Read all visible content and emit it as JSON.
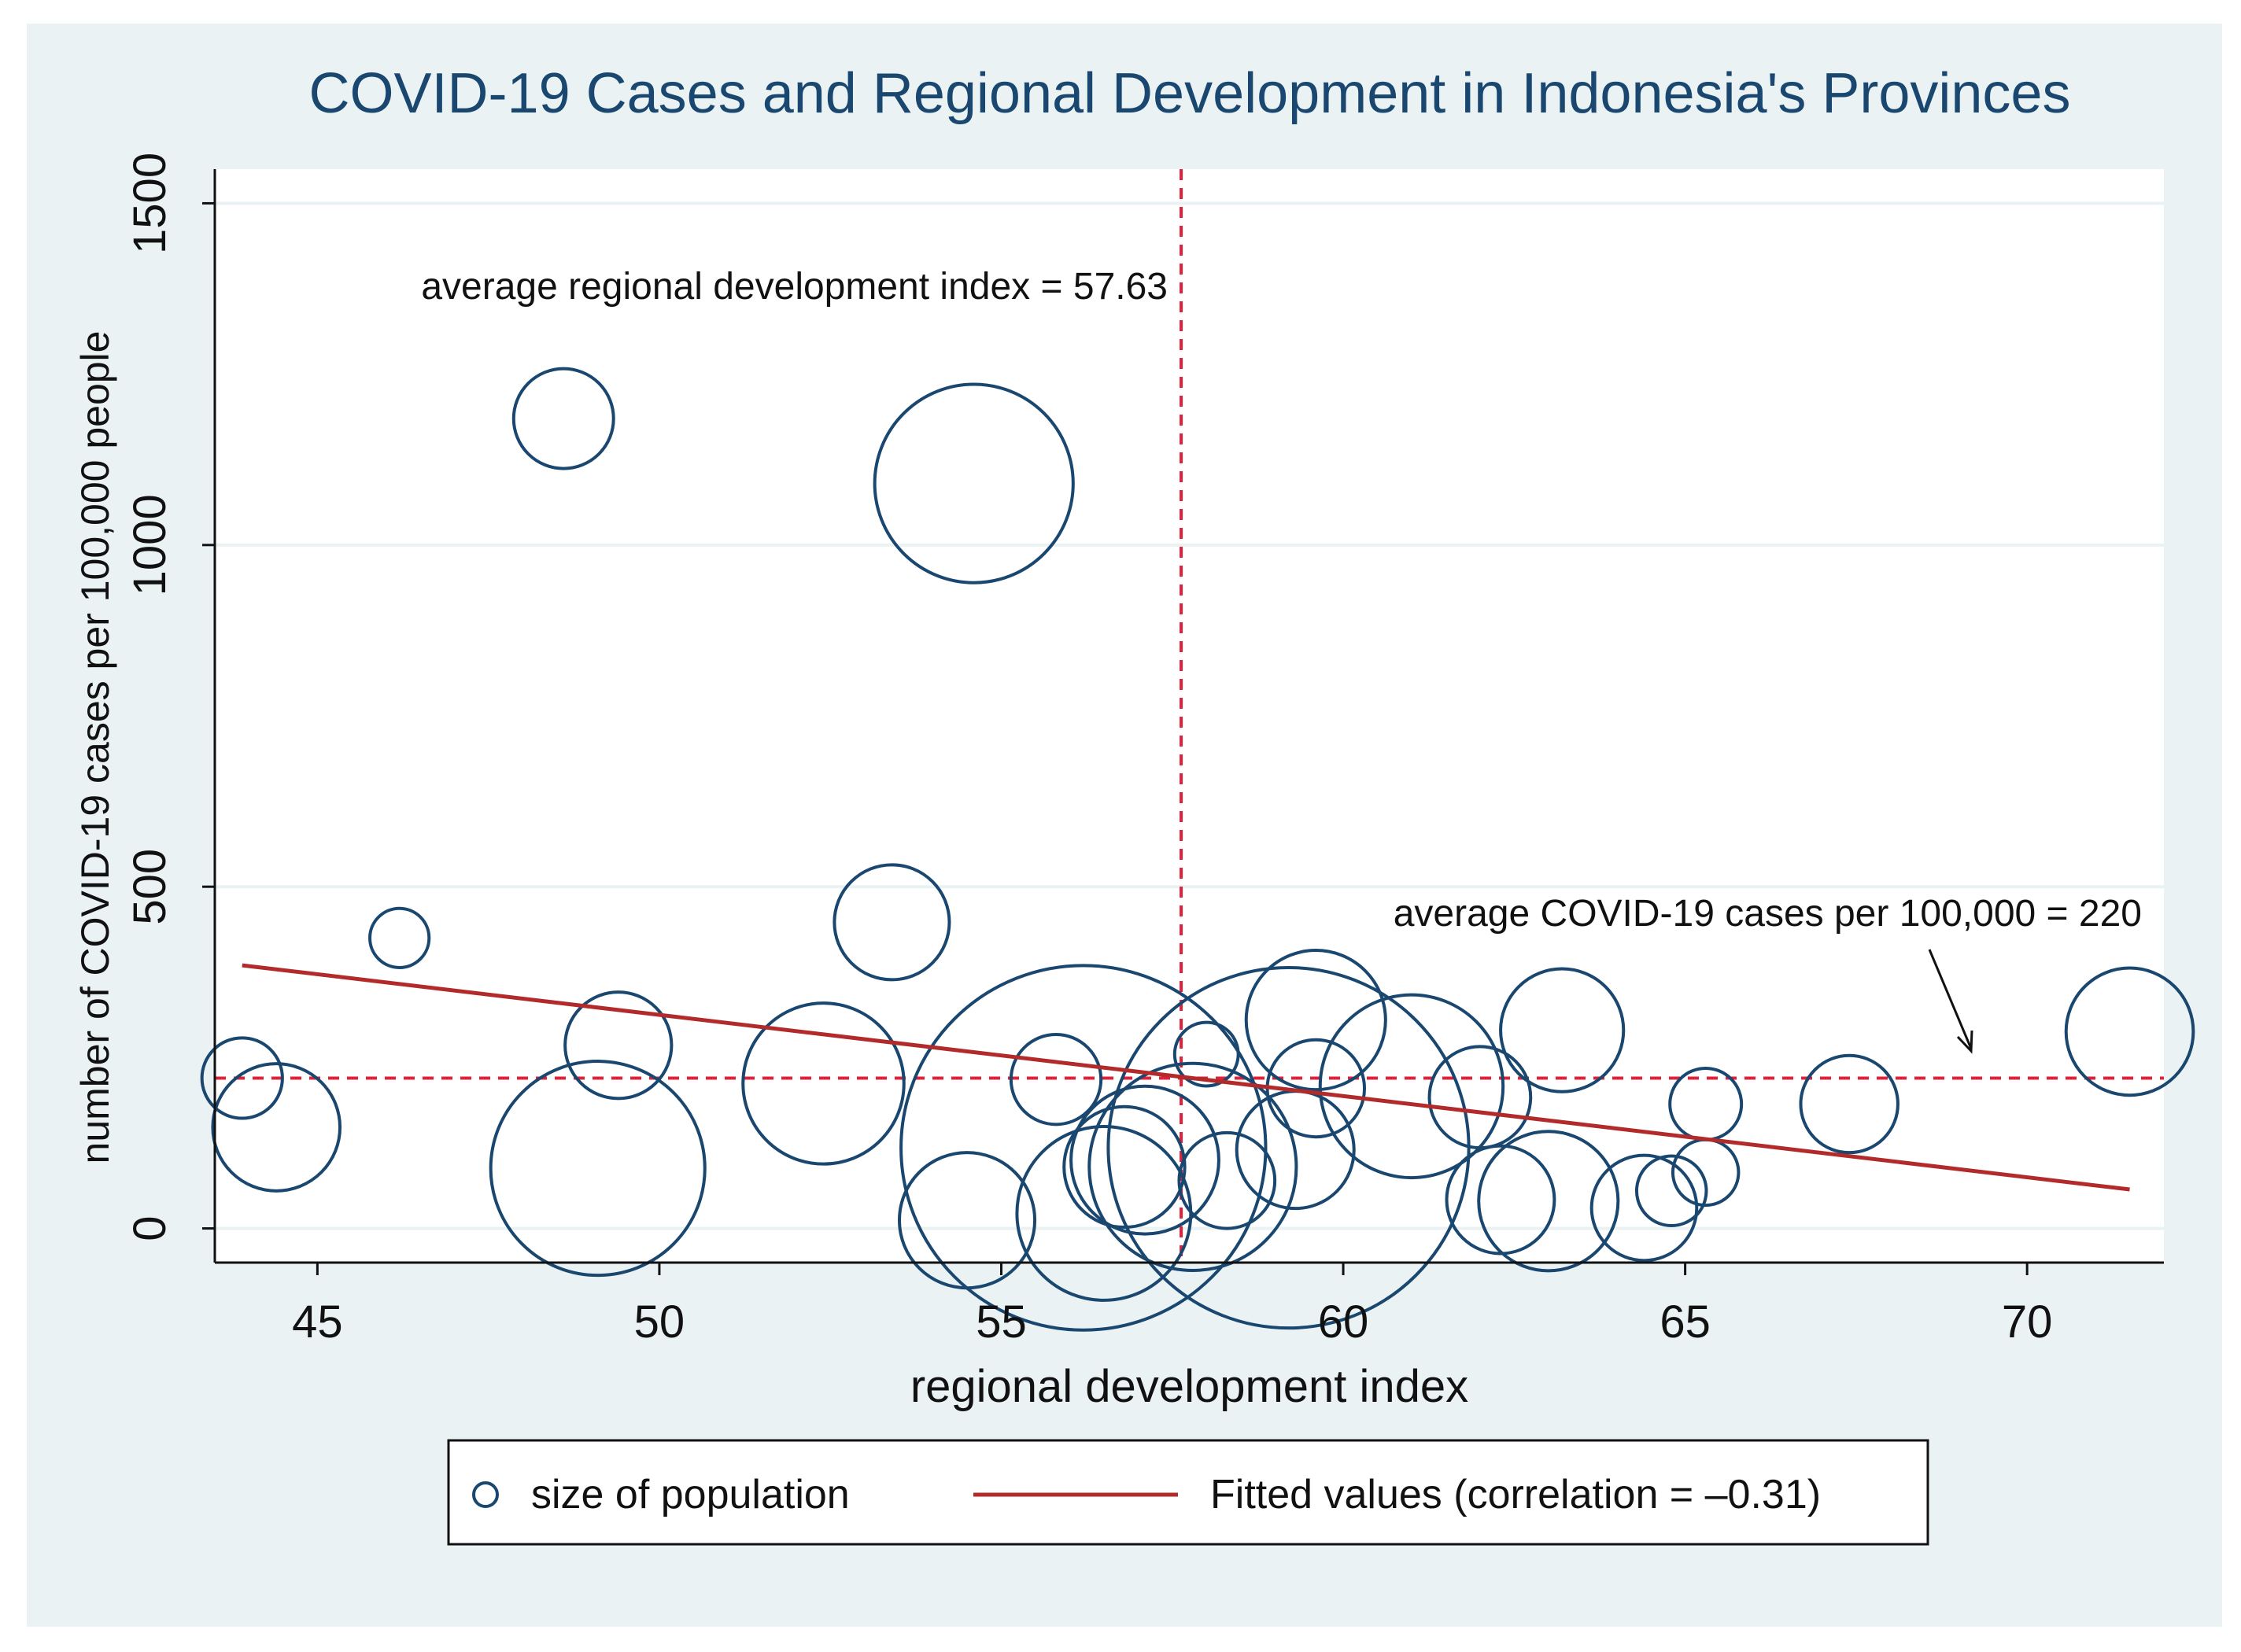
{
  "chart_data": {
    "type": "scatter",
    "title": "COVID-19 Cases and Regional Development in Indonesia's Provinces",
    "xlabel": "regional development index",
    "ylabel": "number of COVID-19 cases per 100,000 people",
    "xlim": [
      43.5,
      72
    ],
    "ylim": [
      -50,
      1550
    ],
    "xticks": [
      45,
      50,
      55,
      60,
      65,
      70
    ],
    "yticks": [
      0,
      500,
      1000,
      1500
    ],
    "grid": true,
    "colors": {
      "marker": "#1a476f",
      "fit": "#b22a2a",
      "ref": "#e0213a",
      "background": "#eaf2f3",
      "title": "#1a476f"
    },
    "series": [
      {
        "name": "size of population",
        "type": "bubble",
        "points": [
          {
            "x": 43.9,
            "y": 220,
            "size": 2.4
          },
          {
            "x": 44.4,
            "y": 148,
            "size": 6.0
          },
          {
            "x": 46.2,
            "y": 425,
            "size": 1.3
          },
          {
            "x": 48.6,
            "y": 1185,
            "size": 3.7
          },
          {
            "x": 49.1,
            "y": 88,
            "size": 17.0
          },
          {
            "x": 49.4,
            "y": 268,
            "size": 4.2
          },
          {
            "x": 52.4,
            "y": 212,
            "size": 9.6
          },
          {
            "x": 53.4,
            "y": 448,
            "size": 4.9
          },
          {
            "x": 54.5,
            "y": 12,
            "size": 6.8
          },
          {
            "x": 54.6,
            "y": 1090,
            "size": 14.6
          },
          {
            "x": 55.8,
            "y": 218,
            "size": 3.0
          },
          {
            "x": 56.2,
            "y": 118,
            "size": 49.3
          },
          {
            "x": 56.5,
            "y": 22,
            "size": 11.2
          },
          {
            "x": 56.8,
            "y": 90,
            "size": 5.4
          },
          {
            "x": 57.1,
            "y": 100,
            "size": 8.1
          },
          {
            "x": 57.8,
            "y": 90,
            "size": 15.9
          },
          {
            "x": 58.0,
            "y": 255,
            "size": 1.5
          },
          {
            "x": 58.3,
            "y": 70,
            "size": 3.4
          },
          {
            "x": 59.2,
            "y": 118,
            "size": 48.2
          },
          {
            "x": 59.3,
            "y": 115,
            "size": 5.1
          },
          {
            "x": 59.6,
            "y": 305,
            "size": 7.2
          },
          {
            "x": 59.6,
            "y": 205,
            "size": 3.5
          },
          {
            "x": 61.0,
            "y": 208,
            "size": 12.4
          },
          {
            "x": 62.0,
            "y": 192,
            "size": 3.8
          },
          {
            "x": 62.3,
            "y": 42,
            "size": 4.3
          },
          {
            "x": 63.0,
            "y": 40,
            "size": 7.2
          },
          {
            "x": 63.2,
            "y": 290,
            "size": 5.6
          },
          {
            "x": 64.4,
            "y": 30,
            "size": 4.1
          },
          {
            "x": 64.8,
            "y": 55,
            "size": 1.8
          },
          {
            "x": 65.3,
            "y": 182,
            "size": 1.9
          },
          {
            "x": 65.3,
            "y": 82,
            "size": 1.6
          },
          {
            "x": 67.4,
            "y": 182,
            "size": 3.5
          },
          {
            "x": 71.5,
            "y": 288,
            "size": 6.0
          }
        ]
      },
      {
        "name": "Fitted values (correlation = –0.31)",
        "type": "line",
        "x": [
          43.9,
          71.5
        ],
        "y": [
          385,
          57
        ]
      }
    ],
    "reference_lines": [
      {
        "axis": "x",
        "value": 57.63
      },
      {
        "axis": "y",
        "value": 220
      }
    ],
    "annotations": [
      {
        "text": "average regional development index = 57.63"
      },
      {
        "text": "average COVID-19 cases per 100,000 = 220"
      }
    ],
    "legend": {
      "position": "bottom",
      "items": [
        "size of population",
        "Fitted values (correlation = –0.31)"
      ]
    }
  }
}
